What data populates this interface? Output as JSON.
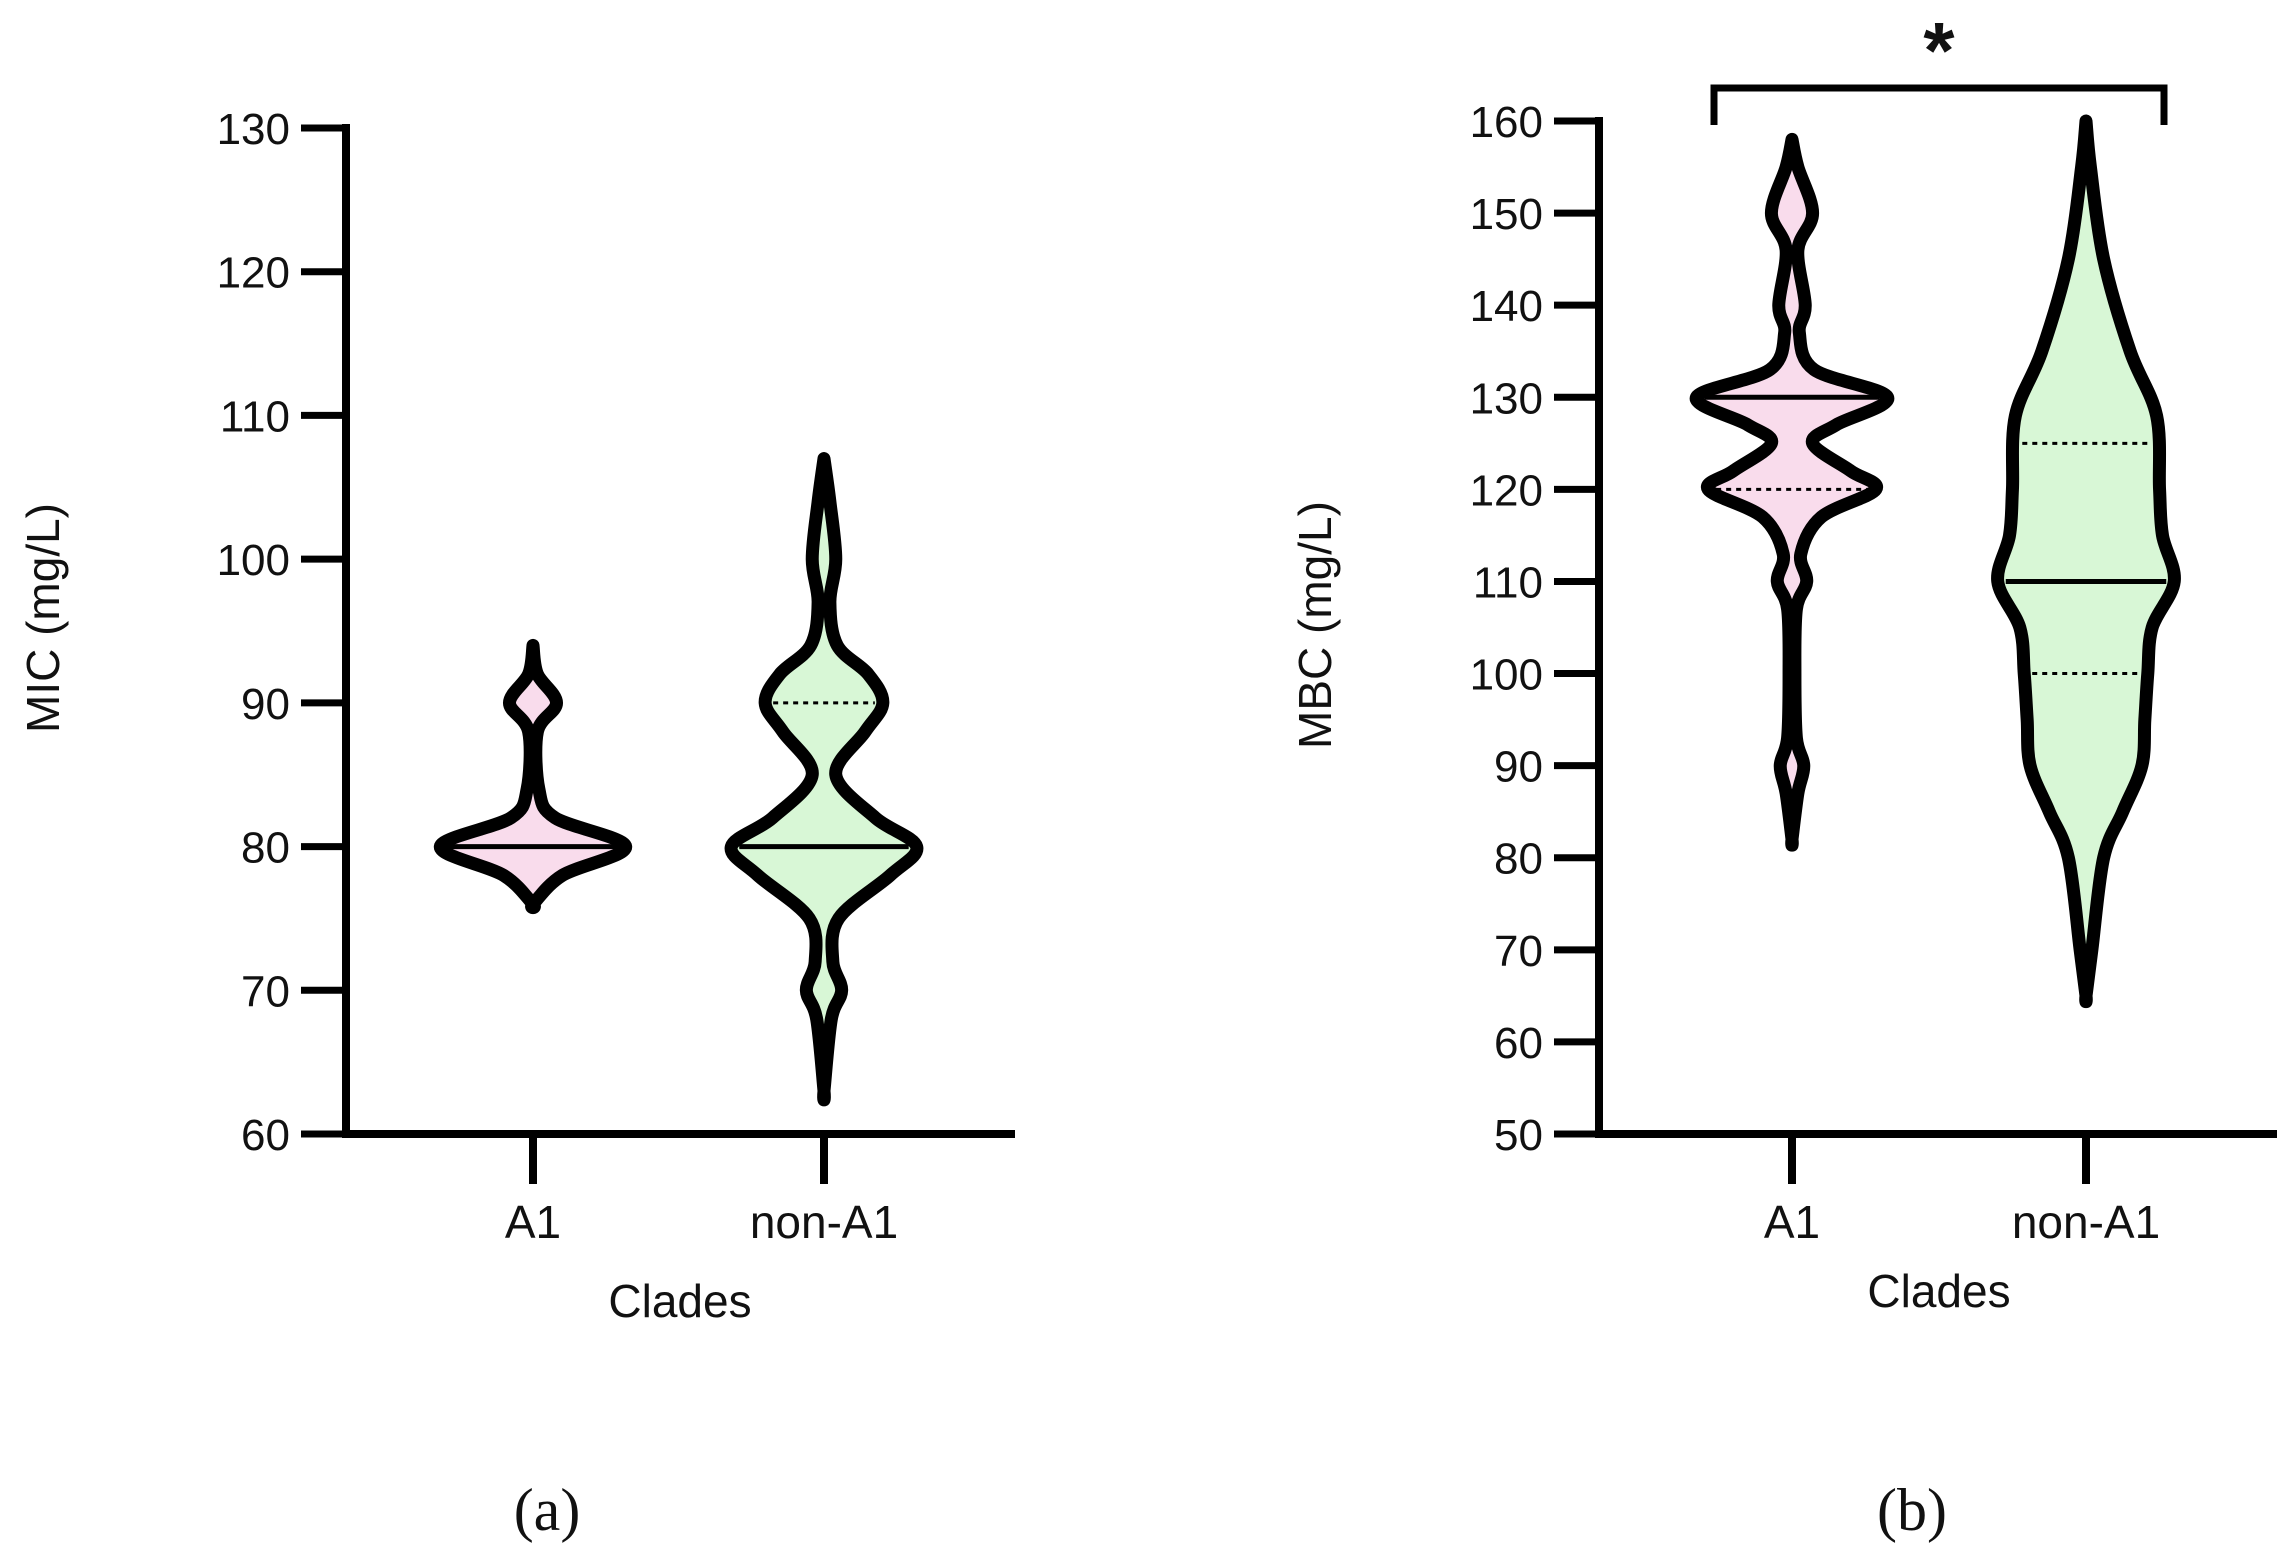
{
  "chart_data": [
    {
      "type": "violin",
      "panel_label": "(a)",
      "ylabel": "MIC (mg/L)",
      "xlabel": "Clades",
      "ylim": [
        60,
        130
      ],
      "yticks": [
        60,
        70,
        80,
        90,
        100,
        110,
        120,
        130
      ],
      "categories": [
        "A1",
        "non-A1"
      ],
      "series": [
        {
          "name": "A1",
          "color": "#f9dcec",
          "median": 80,
          "q1": 80,
          "q3": 80,
          "density": [
            [
              94,
              0
            ],
            [
              92,
              3
            ],
            [
              90,
              16
            ],
            [
              88,
              3
            ],
            [
              84,
              4
            ],
            [
              82,
              15
            ],
            [
              80,
              63
            ],
            [
              78,
              20
            ],
            [
              76,
              0
            ]
          ]
        },
        {
          "name": "non-A1",
          "color": "#d8f7d6",
          "median": 80,
          "q1": 80,
          "q3": 90,
          "density": [
            [
              107,
              0
            ],
            [
              104,
              4
            ],
            [
              100,
              8
            ],
            [
              97,
              4
            ],
            [
              94,
              9
            ],
            [
              92,
              30
            ],
            [
              90,
              40
            ],
            [
              88,
              28
            ],
            [
              85,
              8
            ],
            [
              82,
              35
            ],
            [
              80,
              63
            ],
            [
              78,
              45
            ],
            [
              75,
              10
            ],
            [
              72,
              6
            ],
            [
              70,
              12
            ],
            [
              68,
              5
            ],
            [
              63,
              0
            ]
          ]
        }
      ],
      "significance": null
    },
    {
      "type": "violin",
      "panel_label": "(b)",
      "ylabel": "MBC (mg/L)",
      "xlabel": "Clades",
      "ylim": [
        50,
        160
      ],
      "yticks": [
        50,
        60,
        70,
        80,
        90,
        100,
        110,
        120,
        130,
        140,
        150,
        160
      ],
      "categories": [
        "A1",
        "non-A1"
      ],
      "series": [
        {
          "name": "A1",
          "color": "#f9dcec",
          "median": 130,
          "q1": 120,
          "q3": 130,
          "density": [
            [
              158,
              0
            ],
            [
              155,
              4
            ],
            [
              150,
              14
            ],
            [
              146,
              4
            ],
            [
              140,
              9
            ],
            [
              137,
              5
            ],
            [
              133,
              15
            ],
            [
              130,
              65
            ],
            [
              127,
              30
            ],
            [
              125,
              14
            ],
            [
              122,
              40
            ],
            [
              120,
              57
            ],
            [
              117,
              20
            ],
            [
              113,
              6
            ],
            [
              110,
              10
            ],
            [
              107,
              3
            ],
            [
              100,
              2
            ],
            [
              93,
              3
            ],
            [
              90,
              8
            ],
            [
              87,
              4
            ],
            [
              82,
              0
            ]
          ]
        },
        {
          "name": "non-A1",
          "color": "#d8f7d6",
          "median": 110,
          "q1": 100,
          "q3": 125,
          "density": [
            [
              160,
              0
            ],
            [
              155,
              3
            ],
            [
              145,
              12
            ],
            [
              135,
              30
            ],
            [
              128,
              48
            ],
            [
              120,
              50
            ],
            [
              115,
              52
            ],
            [
              110,
              60
            ],
            [
              105,
              45
            ],
            [
              100,
              42
            ],
            [
              95,
              40
            ],
            [
              90,
              38
            ],
            [
              85,
              25
            ],
            [
              80,
              12
            ],
            [
              70,
              4
            ],
            [
              65,
              0
            ]
          ]
        }
      ],
      "significance": "*"
    }
  ]
}
